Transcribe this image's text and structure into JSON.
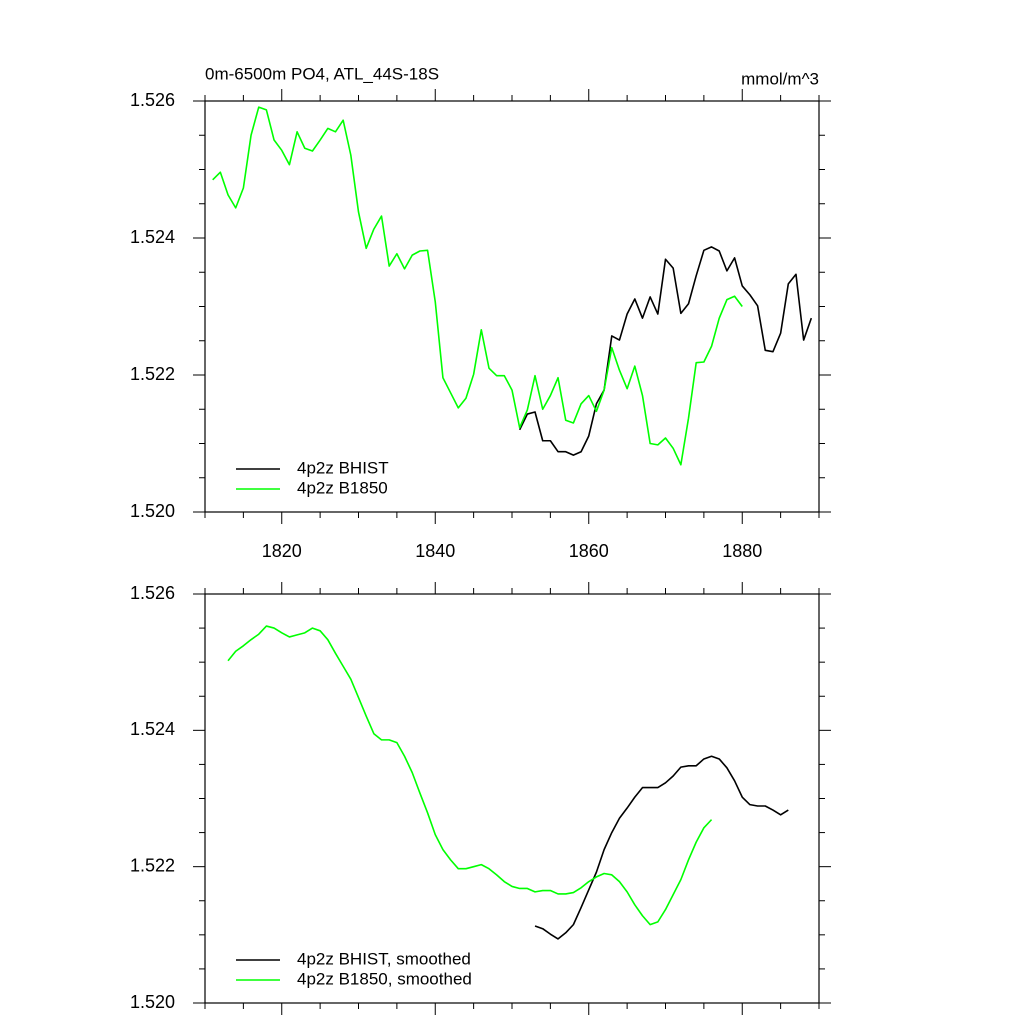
{
  "chart_data": [
    {
      "type": "line",
      "title": "0m-6500m PO4, ATL_44S-18S",
      "right_title": "mmol/m^3",
      "xlim": [
        1810,
        1890
      ],
      "xticks": [
        1820,
        1840,
        1860,
        1880
      ],
      "show_xtick_labels": true,
      "ylim": [
        1.52,
        1.526
      ],
      "yticks": [
        {
          "value": 1.52,
          "label": "1.520"
        },
        1.522,
        1.524,
        1.526
      ],
      "legend": "lower left",
      "grid": false,
      "series": [
        {
          "name": "4p2z BHIST",
          "color": "#000000",
          "x": [
            1851,
            1852,
            1853,
            1854,
            1855,
            1856,
            1857,
            1858,
            1859,
            1860,
            1861,
            1862,
            1863,
            1864,
            1865,
            1866,
            1867,
            1868,
            1869,
            1870,
            1871,
            1872,
            1873,
            1874,
            1875,
            1876,
            1877,
            1878,
            1879,
            1880,
            1881,
            1882,
            1883,
            1884,
            1885,
            1886,
            1887,
            1888,
            1889
          ],
          "values": [
            1.5212,
            1.52143,
            1.52146,
            1.52104,
            1.52104,
            1.52088,
            1.52088,
            1.52083,
            1.52088,
            1.52111,
            1.52158,
            1.52178,
            1.52257,
            1.52251,
            1.52289,
            1.52311,
            1.52283,
            1.52314,
            1.52289,
            1.52369,
            1.52356,
            1.5229,
            1.52304,
            1.52345,
            1.52382,
            1.52387,
            1.52381,
            1.52352,
            1.52371,
            1.5233,
            1.52317,
            1.52301,
            1.52236,
            1.52234,
            1.52261,
            1.52333,
            1.52347,
            1.52251,
            1.52283
          ]
        },
        {
          "name": "4p2z B1850",
          "color": "#00ff00",
          "x": [
            1811,
            1812,
            1813,
            1814,
            1815,
            1816,
            1817,
            1818,
            1819,
            1820,
            1821,
            1822,
            1823,
            1824,
            1825,
            1826,
            1827,
            1828,
            1829,
            1830,
            1831,
            1832,
            1833,
            1834,
            1835,
            1836,
            1837,
            1838,
            1839,
            1840,
            1841,
            1842,
            1843,
            1844,
            1845,
            1846,
            1847,
            1848,
            1849,
            1850,
            1851,
            1852,
            1853,
            1854,
            1855,
            1856,
            1857,
            1858,
            1859,
            1860,
            1861,
            1862,
            1863,
            1864,
            1865,
            1866,
            1867,
            1868,
            1869,
            1870,
            1871,
            1872,
            1873,
            1874,
            1875,
            1876,
            1877,
            1878,
            1879,
            1880
          ],
          "values": [
            1.52485,
            1.52496,
            1.52463,
            1.52444,
            1.52473,
            1.5255,
            1.52591,
            1.52587,
            1.52543,
            1.52528,
            1.52507,
            1.52555,
            1.52531,
            1.52527,
            1.52543,
            1.5256,
            1.52555,
            1.52572,
            1.52521,
            1.52438,
            1.52385,
            1.52413,
            1.52432,
            1.52359,
            1.52377,
            1.52355,
            1.52375,
            1.52381,
            1.52382,
            1.52307,
            1.52196,
            1.52174,
            1.52152,
            1.52166,
            1.52201,
            1.52266,
            1.5221,
            1.52199,
            1.52199,
            1.52178,
            1.52123,
            1.52149,
            1.52199,
            1.5215,
            1.5217,
            1.52196,
            1.52134,
            1.5213,
            1.52158,
            1.5217,
            1.52147,
            1.52178,
            1.5224,
            1.52207,
            1.5218,
            1.52213,
            1.5217,
            1.521,
            1.52098,
            1.52108,
            1.52093,
            1.52069,
            1.52137,
            1.52218,
            1.52219,
            1.52242,
            1.52283,
            1.5231,
            1.52315,
            1.523
          ]
        }
      ]
    },
    {
      "type": "line",
      "xlim": [
        1810,
        1890
      ],
      "xticks": [
        1820,
        1840,
        1860,
        1880
      ],
      "show_xtick_labels": false,
      "ylim": [
        1.52,
        1.526
      ],
      "yticks": [
        {
          "value": 1.52,
          "label": "1.520"
        },
        1.522,
        1.524,
        1.526
      ],
      "legend": "lower left",
      "grid": false,
      "series": [
        {
          "name": "4p2z BHIST, smoothed",
          "color": "#000000",
          "x": [
            1853,
            1854,
            1855,
            1856,
            1857,
            1858,
            1859,
            1860,
            1861,
            1862,
            1863,
            1864,
            1865,
            1866,
            1867,
            1868,
            1869,
            1870,
            1871,
            1872,
            1873,
            1874,
            1875,
            1876,
            1877,
            1878,
            1879,
            1880,
            1881,
            1882,
            1883,
            1884,
            1885,
            1886
          ],
          "values": [
            1.52113,
            1.52109,
            1.52101,
            1.52094,
            1.52103,
            1.52115,
            1.5214,
            1.52166,
            1.52192,
            1.52225,
            1.5225,
            1.52271,
            1.52286,
            1.52302,
            1.52316,
            1.52316,
            1.52316,
            1.52323,
            1.52333,
            1.52346,
            1.52348,
            1.52348,
            1.52358,
            1.52362,
            1.52358,
            1.52345,
            1.52326,
            1.52302,
            1.52291,
            1.52289,
            1.52289,
            1.52283,
            1.52276,
            1.52283
          ]
        },
        {
          "name": "4p2z B1850, smoothed",
          "color": "#00ff00",
          "x": [
            1813,
            1814,
            1815,
            1816,
            1817,
            1818,
            1819,
            1820,
            1821,
            1822,
            1823,
            1824,
            1825,
            1826,
            1827,
            1828,
            1829,
            1830,
            1831,
            1832,
            1833,
            1834,
            1835,
            1836,
            1837,
            1838,
            1839,
            1840,
            1841,
            1842,
            1843,
            1844,
            1845,
            1846,
            1847,
            1848,
            1849,
            1850,
            1851,
            1852,
            1853,
            1854,
            1855,
            1856,
            1857,
            1858,
            1859,
            1860,
            1861,
            1862,
            1863,
            1864,
            1865,
            1866,
            1867,
            1868,
            1869,
            1870,
            1871,
            1872,
            1873,
            1874,
            1875,
            1876
          ],
          "values": [
            1.52502,
            1.52516,
            1.52524,
            1.52533,
            1.52541,
            1.52553,
            1.5255,
            1.52543,
            1.52537,
            1.5254,
            1.52543,
            1.5255,
            1.52546,
            1.52533,
            1.52513,
            1.52494,
            1.52475,
            1.52448,
            1.52421,
            1.52395,
            1.52386,
            1.52386,
            1.52382,
            1.52362,
            1.52338,
            1.52308,
            1.52279,
            1.52247,
            1.52225,
            1.5221,
            1.52197,
            1.52197,
            1.522,
            1.52203,
            1.52197,
            1.52188,
            1.52178,
            1.52171,
            1.52168,
            1.52168,
            1.52163,
            1.52165,
            1.52165,
            1.5216,
            1.5216,
            1.52162,
            1.52169,
            1.52178,
            1.52185,
            1.5219,
            1.52188,
            1.52178,
            1.52163,
            1.52144,
            1.52128,
            1.52115,
            1.52119,
            1.52137,
            1.52159,
            1.52181,
            1.5221,
            1.52236,
            1.52257,
            1.52269
          ]
        }
      ]
    }
  ]
}
